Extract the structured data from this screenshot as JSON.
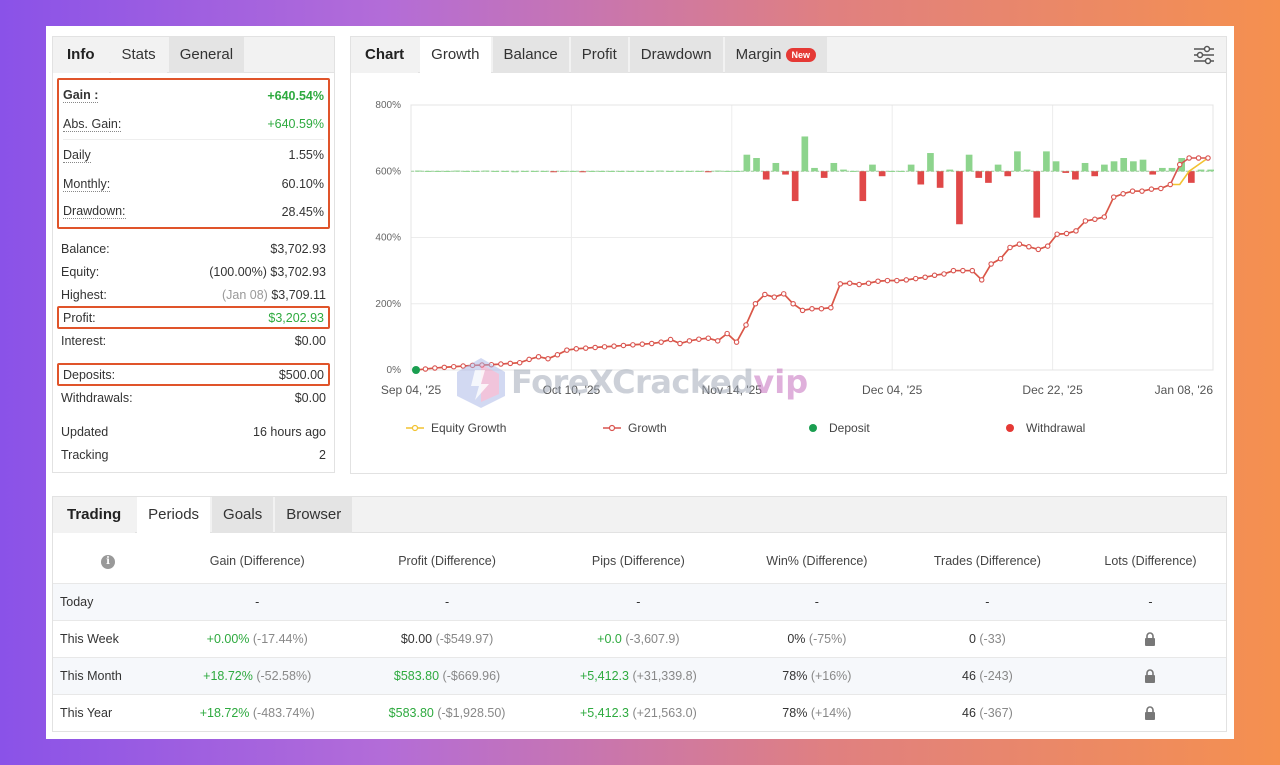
{
  "info": {
    "tabs": [
      "Info",
      "Stats",
      "General"
    ],
    "rows_top": [
      {
        "label": "Gain :",
        "value": "+640.54%"
      },
      {
        "label": "Abs. Gain:",
        "value": "+640.59%"
      },
      {
        "label": "Daily",
        "value": "1.55%"
      },
      {
        "label": "Monthly:",
        "value": "60.10%"
      },
      {
        "label": "Drawdown:",
        "value": "28.45%"
      }
    ],
    "balance": {
      "label": "Balance:",
      "value": "$3,702.93"
    },
    "equity": {
      "label": "Equity:",
      "pct": "(100.00%)",
      "value": "$3,702.93"
    },
    "highest": {
      "label": "Highest:",
      "date": "(Jan 08)",
      "value": "$3,709.11"
    },
    "profit": {
      "label": "Profit:",
      "value": "$3,202.93"
    },
    "interest": {
      "label": "Interest:",
      "value": "$0.00"
    },
    "deposits": {
      "label": "Deposits:",
      "value": "$500.00"
    },
    "withdrawals": {
      "label": "Withdrawals:",
      "value": "$0.00"
    },
    "updated": {
      "label": "Updated",
      "value": "16 hours ago"
    },
    "tracking": {
      "label": "Tracking",
      "value": "2"
    }
  },
  "chart_tabs": {
    "header": "Chart",
    "tabs": [
      "Growth",
      "Balance",
      "Profit",
      "Drawdown",
      "Margin"
    ],
    "new_badge": "New"
  },
  "chart_data": {
    "type": "line",
    "x_tick_labels": [
      "Sep 04, '25",
      "Oct 10, '25",
      "Nov 14, '25",
      "Dec 04, '25",
      "Dec 22, '25",
      "Jan 08, '26"
    ],
    "y_tick_labels": [
      "0%",
      "200%",
      "400%",
      "600%",
      "800%"
    ],
    "ylim": [
      0,
      800
    ],
    "grid": true,
    "legend_position": "bottom",
    "legend": [
      {
        "name": "Equity Growth",
        "color": "#f2c230"
      },
      {
        "name": "Growth",
        "color": "#d9534f"
      },
      {
        "name": "Deposit",
        "color": "#1a9e50"
      },
      {
        "name": "Withdrawal",
        "color": "#e53935"
      }
    ],
    "series": [
      {
        "name": "Growth",
        "values": [
          0,
          3,
          6,
          8,
          10,
          12,
          14,
          15,
          16,
          18,
          20,
          22,
          32,
          40,
          34,
          46,
          60,
          64,
          66,
          68,
          70,
          72,
          74,
          76,
          78,
          80,
          84,
          92,
          80,
          88,
          93,
          96,
          88,
          110,
          84,
          136,
          200,
          228,
          220,
          230,
          200,
          180,
          185,
          185,
          188,
          260,
          262,
          258,
          262,
          268,
          270,
          270,
          272,
          276,
          280,
          286,
          290,
          300,
          300,
          300,
          272,
          320,
          336,
          370,
          380,
          372,
          364,
          374,
          410,
          412,
          420,
          450,
          455,
          462,
          522,
          532,
          540,
          540,
          546,
          548,
          560,
          620,
          640,
          640,
          640
        ]
      },
      {
        "name": "Equity Growth",
        "values": [
          0,
          3,
          6,
          8,
          10,
          12,
          14,
          15,
          16,
          18,
          20,
          22,
          32,
          40,
          34,
          46,
          60,
          64,
          66,
          68,
          70,
          72,
          74,
          76,
          78,
          80,
          84,
          92,
          80,
          88,
          93,
          96,
          88,
          110,
          84,
          136,
          200,
          228,
          220,
          230,
          200,
          180,
          185,
          185,
          188,
          260,
          262,
          258,
          262,
          268,
          270,
          270,
          272,
          276,
          280,
          286,
          290,
          300,
          300,
          300,
          272,
          320,
          336,
          370,
          380,
          372,
          364,
          374,
          410,
          412,
          420,
          450,
          455,
          462,
          522,
          532,
          540,
          540,
          546,
          548,
          560,
          560,
          600,
          620,
          640
        ]
      }
    ],
    "bars_baseline": 600,
    "bars": [
      2,
      1,
      1,
      1,
      2,
      1,
      1,
      2,
      1,
      1,
      0,
      1,
      1,
      1,
      -2,
      1,
      1,
      -1,
      1,
      1,
      1,
      1,
      1,
      1,
      1,
      2,
      1,
      1,
      1,
      1,
      -1,
      2,
      1,
      1,
      50,
      40,
      -25,
      25,
      -10,
      -90,
      105,
      10,
      -20,
      25,
      5,
      1,
      -90,
      20,
      -15,
      1,
      1,
      20,
      -40,
      55,
      -50,
      5,
      -160,
      50,
      -20,
      -35,
      20,
      -15,
      60,
      5,
      -140,
      60,
      30,
      -5,
      -25,
      25,
      -15,
      20,
      30,
      40,
      30,
      35,
      -10,
      10,
      10,
      40,
      -35,
      5,
      5
    ]
  },
  "trading": {
    "tabs": [
      "Trading",
      "Periods",
      "Goals",
      "Browser"
    ],
    "info_icon": "i",
    "columns": [
      "Gain (Difference)",
      "Profit (Difference)",
      "Pips (Difference)",
      "Win% (Difference)",
      "Trades (Difference)",
      "Lots (Difference)"
    ],
    "rows": [
      {
        "period": "Today",
        "gain": "-",
        "gain_diff": "",
        "profit": "-",
        "profit_diff": "",
        "pips": "-",
        "pips_diff": "",
        "win": "-",
        "win_diff": "",
        "trades": "-",
        "trades_diff": "",
        "lots": "-"
      },
      {
        "period": "This Week",
        "gain": "+0.00%",
        "gain_diff": "(-17.44%)",
        "profit": "$0.00",
        "profit_diff": "(-$549.97)",
        "pips": "+0.0",
        "pips_diff": "(-3,607.9)",
        "win": "0%",
        "win_diff": "(-75%)",
        "trades": "0",
        "trades_diff": "(-33)",
        "lots": "lock"
      },
      {
        "period": "This Month",
        "gain": "+18.72%",
        "gain_diff": "(-52.58%)",
        "profit": "$583.80",
        "profit_diff": "(-$669.96)",
        "pips": "+5,412.3",
        "pips_diff": "(+31,339.8)",
        "win": "78%",
        "win_diff": "(+16%)",
        "trades": "46",
        "trades_diff": "(-243)",
        "lots": "lock"
      },
      {
        "period": "This Year",
        "gain": "+18.72%",
        "gain_diff": "(-483.74%)",
        "profit": "$583.80",
        "profit_diff": "(-$1,928.50)",
        "pips": "+5,412.3",
        "pips_diff": "(+21,563.0)",
        "win": "78%",
        "win_diff": "(+14%)",
        "trades": "46",
        "trades_diff": "(-367)",
        "lots": "lock"
      }
    ]
  },
  "watermark": {
    "text": "ForeXCracked",
    "suffix": "vip"
  },
  "colors": {
    "green": "#2eaa3f",
    "red": "#e53935",
    "highlight": "#e0542a",
    "growth_line": "#d9534f",
    "equity_line": "#f2c230"
  }
}
